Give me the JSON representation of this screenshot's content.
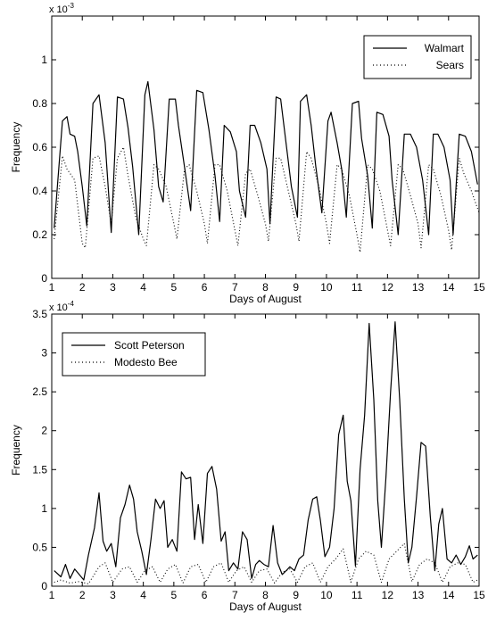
{
  "chart_data": [
    {
      "type": "line",
      "xlabel": "Days of August",
      "ylabel": "Frequency",
      "y_multiplier": "x 10",
      "y_exponent": "-3",
      "xlim": [
        1,
        15
      ],
      "ylim": [
        0,
        1.2
      ],
      "xticks": [
        1,
        2,
        3,
        4,
        5,
        6,
        7,
        8,
        9,
        10,
        11,
        12,
        13,
        14,
        15
      ],
      "yticks": [
        0,
        0.2,
        0.4,
        0.6,
        0.8,
        1
      ],
      "ytick_labels": [
        "0",
        "0.2",
        "0.4",
        "0.6",
        "0.8",
        "1"
      ],
      "legend_position": "top-right",
      "grid": false,
      "series": [
        {
          "name": "Walmart",
          "style": "solid",
          "x": [
            1.08,
            1.35,
            1.5,
            1.6,
            1.75,
            1.85,
            2.0,
            2.15,
            2.35,
            2.55,
            2.75,
            2.95,
            3.15,
            3.35,
            3.5,
            3.65,
            3.85,
            4.05,
            4.15,
            4.35,
            4.5,
            4.65,
            4.85,
            5.05,
            5.15,
            5.35,
            5.55,
            5.75,
            5.95,
            6.15,
            6.35,
            6.5,
            6.65,
            6.85,
            7.05,
            7.15,
            7.35,
            7.5,
            7.65,
            7.85,
            8.05,
            8.15,
            8.35,
            8.5,
            8.65,
            8.85,
            9.05,
            9.15,
            9.35,
            9.5,
            9.65,
            9.85,
            10.05,
            10.15,
            10.35,
            10.5,
            10.65,
            10.85,
            11.05,
            11.15,
            11.35,
            11.5,
            11.65,
            11.85,
            12.05,
            12.15,
            12.35,
            12.55,
            12.75,
            12.95,
            13.15,
            13.35,
            13.5,
            13.65,
            13.85,
            14.05,
            14.15,
            14.35,
            14.55,
            14.75,
            14.95
          ],
          "y": [
            0.23,
            0.72,
            0.74,
            0.66,
            0.65,
            0.58,
            0.42,
            0.24,
            0.8,
            0.84,
            0.62,
            0.21,
            0.83,
            0.82,
            0.69,
            0.51,
            0.2,
            0.84,
            0.9,
            0.68,
            0.42,
            0.35,
            0.82,
            0.82,
            0.7,
            0.51,
            0.31,
            0.86,
            0.85,
            0.68,
            0.47,
            0.26,
            0.7,
            0.67,
            0.58,
            0.4,
            0.28,
            0.7,
            0.7,
            0.62,
            0.5,
            0.25,
            0.83,
            0.82,
            0.65,
            0.42,
            0.28,
            0.81,
            0.84,
            0.7,
            0.51,
            0.3,
            0.72,
            0.76,
            0.62,
            0.5,
            0.28,
            0.8,
            0.81,
            0.64,
            0.47,
            0.23,
            0.76,
            0.75,
            0.65,
            0.45,
            0.2,
            0.66,
            0.66,
            0.6,
            0.45,
            0.2,
            0.66,
            0.66,
            0.6,
            0.45,
            0.2,
            0.66,
            0.65,
            0.58,
            0.43
          ],
          "_note": ""
        },
        {
          "name": "Sears",
          "style": "dotted",
          "x": [
            1.08,
            1.35,
            1.5,
            1.75,
            2.0,
            2.1,
            2.35,
            2.55,
            2.75,
            2.95,
            3.15,
            3.35,
            3.5,
            3.75,
            4.0,
            4.1,
            4.35,
            4.5,
            4.75,
            5.0,
            5.1,
            5.35,
            5.5,
            5.75,
            6.0,
            6.1,
            6.35,
            6.5,
            6.75,
            7.0,
            7.1,
            7.35,
            7.5,
            7.75,
            8.0,
            8.1,
            8.35,
            8.5,
            8.75,
            9.0,
            9.1,
            9.35,
            9.5,
            9.75,
            10.0,
            10.1,
            10.35,
            10.5,
            10.75,
            11.0,
            11.1,
            11.35,
            11.5,
            11.75,
            12.0,
            12.1,
            12.35,
            12.5,
            12.75,
            13.0,
            13.1,
            13.35,
            13.5,
            13.75,
            14.0,
            14.1,
            14.35,
            14.5,
            14.75,
            15.0
          ],
          "y": [
            0.18,
            0.56,
            0.5,
            0.45,
            0.16,
            0.14,
            0.55,
            0.56,
            0.42,
            0.25,
            0.55,
            0.6,
            0.47,
            0.28,
            0.18,
            0.15,
            0.52,
            0.5,
            0.42,
            0.25,
            0.18,
            0.5,
            0.52,
            0.4,
            0.25,
            0.16,
            0.52,
            0.52,
            0.4,
            0.22,
            0.15,
            0.48,
            0.5,
            0.38,
            0.25,
            0.17,
            0.55,
            0.55,
            0.4,
            0.25,
            0.17,
            0.58,
            0.55,
            0.42,
            0.25,
            0.16,
            0.52,
            0.5,
            0.38,
            0.2,
            0.12,
            0.52,
            0.5,
            0.4,
            0.22,
            0.15,
            0.52,
            0.5,
            0.38,
            0.25,
            0.14,
            0.52,
            0.5,
            0.38,
            0.22,
            0.13,
            0.55,
            0.48,
            0.4,
            0.3
          ]
        }
      ]
    },
    {
      "type": "line",
      "xlabel": "Days of August",
      "ylabel": "Frequency",
      "y_multiplier": "x 10",
      "y_exponent": "-4",
      "xlim": [
        1,
        15
      ],
      "ylim": [
        0,
        3.5
      ],
      "xticks": [
        1,
        2,
        3,
        4,
        5,
        6,
        7,
        8,
        9,
        10,
        11,
        12,
        13,
        14,
        15
      ],
      "yticks": [
        0,
        0.5,
        1,
        1.5,
        2,
        2.5,
        3,
        3.5
      ],
      "ytick_labels": [
        "0",
        "0.5",
        "1",
        "1.5",
        "2",
        "2.5",
        "3",
        "3.5"
      ],
      "legend_position": "top-left",
      "grid": false,
      "series": [
        {
          "name": "Scott Peterson",
          "style": "solid",
          "x": [
            1.08,
            1.3,
            1.45,
            1.6,
            1.75,
            1.9,
            2.05,
            2.2,
            2.4,
            2.55,
            2.68,
            2.8,
            2.95,
            3.1,
            3.25,
            3.4,
            3.55,
            3.68,
            3.8,
            3.95,
            4.1,
            4.25,
            4.4,
            4.55,
            4.68,
            4.8,
            4.95,
            5.1,
            5.25,
            5.4,
            5.55,
            5.68,
            5.8,
            5.95,
            6.1,
            6.25,
            6.4,
            6.55,
            6.68,
            6.8,
            6.95,
            7.1,
            7.25,
            7.4,
            7.55,
            7.68,
            7.8,
            7.95,
            8.1,
            8.25,
            8.4,
            8.55,
            8.68,
            8.8,
            8.95,
            9.1,
            9.25,
            9.4,
            9.55,
            9.68,
            9.8,
            9.95,
            10.1,
            10.25,
            10.4,
            10.55,
            10.68,
            10.8,
            10.95,
            11.1,
            11.25,
            11.4,
            11.55,
            11.68,
            11.8,
            11.95,
            12.1,
            12.25,
            12.4,
            12.55,
            12.68,
            12.8,
            12.95,
            13.1,
            13.25,
            13.4,
            13.55,
            13.68,
            13.8,
            13.95,
            14.1,
            14.25,
            14.4,
            14.55,
            14.68,
            14.8,
            14.95
          ],
          "y": [
            0.2,
            0.12,
            0.28,
            0.1,
            0.22,
            0.15,
            0.08,
            0.4,
            0.75,
            1.2,
            0.58,
            0.45,
            0.55,
            0.25,
            0.88,
            1.05,
            1.3,
            1.12,
            0.7,
            0.45,
            0.15,
            0.6,
            1.12,
            1.0,
            1.1,
            0.5,
            0.6,
            0.45,
            1.47,
            1.38,
            1.4,
            0.6,
            1.05,
            0.55,
            1.45,
            1.54,
            1.25,
            0.58,
            0.7,
            0.2,
            0.3,
            0.22,
            0.7,
            0.6,
            0.1,
            0.28,
            0.33,
            0.28,
            0.25,
            0.78,
            0.3,
            0.15,
            0.2,
            0.25,
            0.2,
            0.35,
            0.4,
            0.85,
            1.12,
            1.15,
            0.85,
            0.38,
            0.5,
            1.0,
            1.95,
            2.2,
            1.35,
            1.1,
            0.26,
            1.5,
            2.2,
            3.38,
            2.4,
            1.1,
            0.5,
            1.4,
            2.5,
            3.4,
            2.4,
            1.12,
            0.3,
            0.5,
            1.15,
            1.85,
            1.8,
            0.9,
            0.2,
            0.8,
            1.0,
            0.35,
            0.3,
            0.4,
            0.28,
            0.38,
            0.52,
            0.35,
            0.4
          ],
          "_note": ""
        },
        {
          "name": "Modesto Bee",
          "style": "dotted",
          "x": [
            1.08,
            1.3,
            1.6,
            1.9,
            2.2,
            2.55,
            2.75,
            3.0,
            3.3,
            3.55,
            3.8,
            4.05,
            4.3,
            4.55,
            4.8,
            5.05,
            5.3,
            5.55,
            5.8,
            6.05,
            6.3,
            6.55,
            6.8,
            7.05,
            7.3,
            7.55,
            7.8,
            8.05,
            8.3,
            8.55,
            8.8,
            9.05,
            9.3,
            9.55,
            9.8,
            10.05,
            10.3,
            10.55,
            10.8,
            11.05,
            11.3,
            11.55,
            11.8,
            12.05,
            12.3,
            12.55,
            12.8,
            13.05,
            13.3,
            13.55,
            13.8,
            14.05,
            14.3,
            14.55,
            14.8,
            14.95
          ],
          "y": [
            0.05,
            0.08,
            0.04,
            0.06,
            0.03,
            0.25,
            0.3,
            0.05,
            0.22,
            0.25,
            0.05,
            0.2,
            0.25,
            0.05,
            0.22,
            0.28,
            0.04,
            0.25,
            0.28,
            0.05,
            0.25,
            0.3,
            0.05,
            0.2,
            0.25,
            0.05,
            0.2,
            0.22,
            0.04,
            0.18,
            0.22,
            0.05,
            0.25,
            0.3,
            0.05,
            0.25,
            0.35,
            0.48,
            0.05,
            0.35,
            0.45,
            0.4,
            0.05,
            0.35,
            0.45,
            0.55,
            0.06,
            0.28,
            0.35,
            0.3,
            0.05,
            0.25,
            0.3,
            0.28,
            0.05,
            0.08
          ]
        }
      ]
    }
  ]
}
